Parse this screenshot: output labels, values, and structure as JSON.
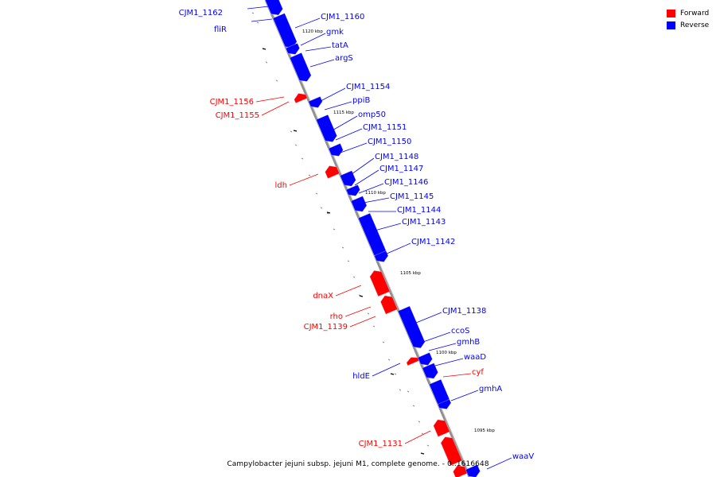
{
  "caption": "Campylobacter jejuni subsp. jejuni M1, complete genome. - 0..1616648",
  "legend": [
    {
      "label": "Forward",
      "color": "#ff0000"
    },
    {
      "label": "Reverse",
      "color": "#0000ff"
    }
  ],
  "colors": {
    "forward": "#ff0000",
    "reverse": "#0000ff",
    "backbone": "#808080"
  },
  "ticks": [
    "1120 kbp",
    "1115 kbp",
    "1110 kbp",
    "1105 kbp",
    "1100 kbp",
    "1095 kbp"
  ],
  "genes": [
    {
      "label": "CJM1_1162",
      "strand": "reverse"
    },
    {
      "label": "fliR",
      "strand": "reverse"
    },
    {
      "label": "CJM1_1160",
      "strand": "reverse"
    },
    {
      "label": "gmk",
      "strand": "reverse"
    },
    {
      "label": "tatA",
      "strand": "reverse"
    },
    {
      "label": "argS",
      "strand": "reverse"
    },
    {
      "label": "CJM1_1156",
      "strand": "forward"
    },
    {
      "label": "CJM1_1155",
      "strand": "forward"
    },
    {
      "label": "CJM1_1154",
      "strand": "reverse"
    },
    {
      "label": "ppiB",
      "strand": "reverse"
    },
    {
      "label": "omp50",
      "strand": "reverse"
    },
    {
      "label": "CJM1_1151",
      "strand": "reverse"
    },
    {
      "label": "CJM1_1150",
      "strand": "reverse"
    },
    {
      "label": "ldh",
      "strand": "forward"
    },
    {
      "label": "CJM1_1148",
      "strand": "reverse"
    },
    {
      "label": "CJM1_1147",
      "strand": "reverse"
    },
    {
      "label": "CJM1_1146",
      "strand": "reverse"
    },
    {
      "label": "CJM1_1145",
      "strand": "reverse"
    },
    {
      "label": "CJM1_1144",
      "strand": "reverse"
    },
    {
      "label": "CJM1_1143",
      "strand": "reverse"
    },
    {
      "label": "CJM1_1142",
      "strand": "reverse"
    },
    {
      "label": "dnaX",
      "strand": "forward"
    },
    {
      "label": "rho",
      "strand": "forward"
    },
    {
      "label": "CJM1_1139",
      "strand": "forward"
    },
    {
      "label": "CJM1_1138",
      "strand": "reverse"
    },
    {
      "label": "ccoS",
      "strand": "reverse"
    },
    {
      "label": "gmhB",
      "strand": "reverse"
    },
    {
      "label": "waaD",
      "strand": "reverse"
    },
    {
      "label": "hldE",
      "strand": "reverse"
    },
    {
      "label": "cyf",
      "strand": "forward"
    },
    {
      "label": "gmhA",
      "strand": "reverse"
    },
    {
      "label": "CJM1_1131",
      "strand": "forward"
    },
    {
      "label": "waaV",
      "strand": "reverse"
    }
  ]
}
